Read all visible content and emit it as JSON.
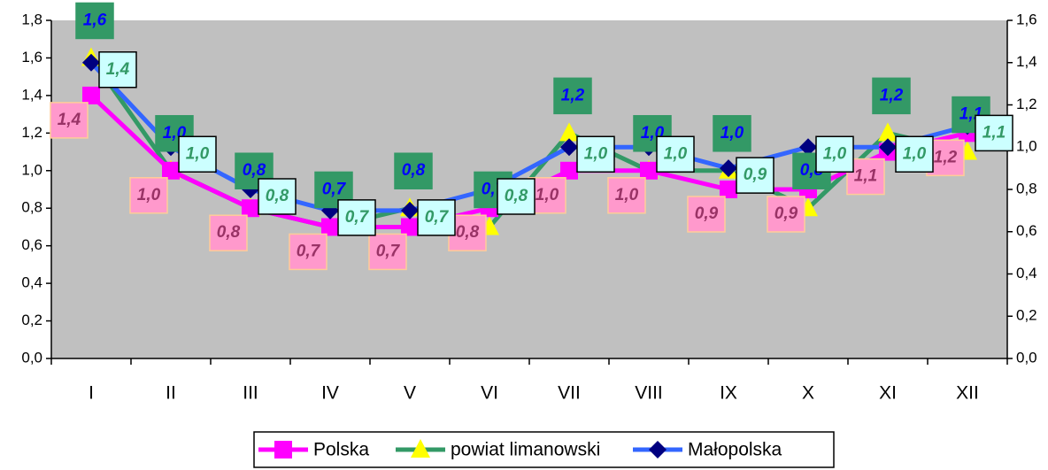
{
  "chart_data": {
    "type": "line",
    "categories": [
      "I",
      "II",
      "III",
      "IV",
      "V",
      "VI",
      "VII",
      "VIII",
      "IX",
      "X",
      "XI",
      "XII"
    ],
    "ylim": [
      0,
      1.8
    ],
    "yticks": [
      {
        "value": 0,
        "label": "0,0"
      },
      {
        "value": 0.2,
        "label": "0,2"
      },
      {
        "value": 0.4,
        "label": "0,4"
      },
      {
        "value": 0.6,
        "label": "0,6"
      },
      {
        "value": 0.8,
        "label": "0,8"
      },
      {
        "value": 1.0,
        "label": "1,0"
      },
      {
        "value": 1.2,
        "label": "1,2"
      },
      {
        "value": 1.4,
        "label": "1,4"
      },
      {
        "value": 1.6,
        "label": "1,6"
      },
      {
        "value": 1.8,
        "label": "1,8"
      }
    ],
    "y2lim": [
      0,
      1.6
    ],
    "y2ticks": [
      {
        "value": 0,
        "label": "0,0"
      },
      {
        "value": 0.2,
        "label": "0,2"
      },
      {
        "value": 0.4,
        "label": "0,4"
      },
      {
        "value": 0.6,
        "label": "0,6"
      },
      {
        "value": 0.8,
        "label": "0,8"
      },
      {
        "value": 1.0,
        "label": "1,0"
      },
      {
        "value": 1.2,
        "label": "1,2"
      },
      {
        "value": 1.4,
        "label": "1,4"
      },
      {
        "value": 1.6,
        "label": "1,6"
      }
    ],
    "legend": "bottom",
    "series": [
      {
        "name": "Polska",
        "color": "#ff00ff",
        "marker_color": "#ff00ff",
        "values": [
          1.4,
          1.0,
          0.8,
          0.7,
          0.7,
          0.8,
          1.0,
          1.0,
          0.9,
          0.9,
          1.1,
          1.2
        ],
        "value_labels": [
          "1,4",
          "1,0",
          "0,8",
          "0,7",
          "0,7",
          "0,8",
          "1,0",
          "1,0",
          "0,9",
          "0,9",
          "1,1",
          "1,2"
        ]
      },
      {
        "name": "powiat limanowski",
        "color": "#339966",
        "marker_color": "#ffff00",
        "values": [
          1.6,
          1.0,
          0.8,
          0.7,
          0.8,
          0.7,
          1.2,
          1.0,
          1.0,
          0.8,
          1.2,
          1.1
        ],
        "value_labels": [
          "1,6",
          "1,0",
          "0,8",
          "0,7",
          "0,8",
          "0,7",
          "1,2",
          "1,0",
          "1,0",
          "0,8",
          "1,2",
          "1,1"
        ]
      },
      {
        "name": "Małopolska",
        "color": "#3366ff",
        "marker_color": "#000080",
        "axis": "y2",
        "values": [
          1.4,
          1.0,
          0.8,
          0.7,
          0.7,
          0.8,
          1.0,
          1.0,
          0.9,
          1.0,
          1.0,
          1.1
        ],
        "value_labels": [
          "1,4",
          "1,0",
          "0,8",
          "0,7",
          "0,7",
          "0,8",
          "1,0",
          "1,0",
          "0,9",
          "1,0",
          "1,0",
          "1,1"
        ]
      }
    ]
  }
}
